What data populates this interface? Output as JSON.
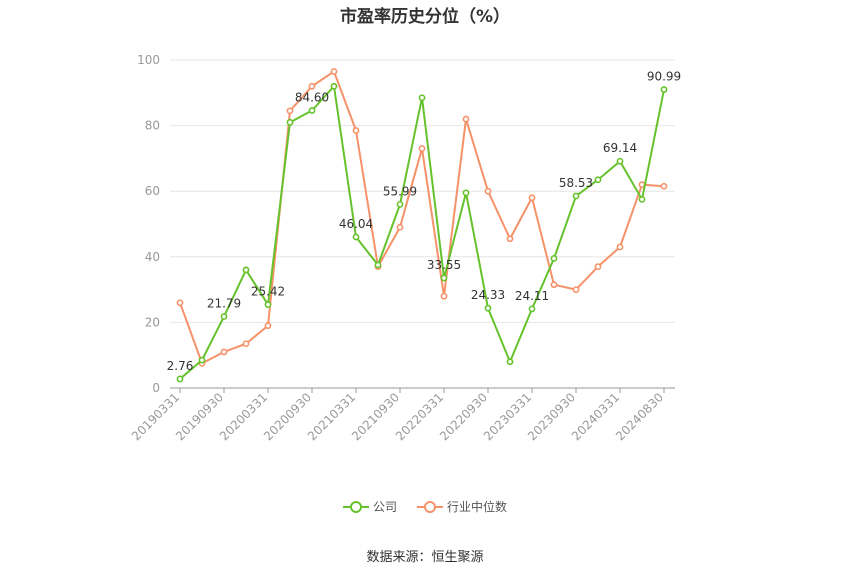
{
  "title": "市盈率历史分位（%）",
  "source": "数据来源：恒生聚源",
  "colors": {
    "company": "#66c22c",
    "industry": "#f5926a",
    "grid": "#e6e6e6",
    "axis": "#999999"
  },
  "chart_data": {
    "type": "line",
    "title": "市盈率历史分位（%）",
    "xlabel": "",
    "ylabel": "",
    "ylim": [
      0,
      100
    ],
    "yticks": [
      0,
      20,
      40,
      60,
      80,
      100
    ],
    "grid": true,
    "legend_position": "bottom",
    "x": [
      "20190331",
      "20190630",
      "20190930",
      "20191231",
      "20200331",
      "20200630",
      "20200930",
      "20201231",
      "20210331",
      "20210630",
      "20210930",
      "20211231",
      "20220331",
      "20220630",
      "20220930",
      "20221231",
      "20230331",
      "20230630",
      "20230930",
      "20231231",
      "20240331",
      "20240630",
      "20240830"
    ],
    "xticks": [
      "20190331",
      "20190930",
      "20200331",
      "20200930",
      "20210331",
      "20210930",
      "20220331",
      "20220930",
      "20230331",
      "20230930",
      "20240331",
      "20240830"
    ],
    "series": [
      {
        "name": "公司",
        "color": "#66c22c",
        "values": [
          2.76,
          8.5,
          21.79,
          36.0,
          25.42,
          81.0,
          84.6,
          92.0,
          46.04,
          37.5,
          55.99,
          88.5,
          33.55,
          59.5,
          24.33,
          8.0,
          24.11,
          39.5,
          58.53,
          63.5,
          69.14,
          57.5,
          90.99
        ],
        "labeled_points": [
          {
            "index": 0,
            "label": "2.76"
          },
          {
            "index": 2,
            "label": "21.79"
          },
          {
            "index": 4,
            "label": "25.42"
          },
          {
            "index": 6,
            "label": "84.60"
          },
          {
            "index": 8,
            "label": "46.04"
          },
          {
            "index": 10,
            "label": "55.99"
          },
          {
            "index": 12,
            "label": "33.55"
          },
          {
            "index": 14,
            "label": "24.33"
          },
          {
            "index": 16,
            "label": "24.11"
          },
          {
            "index": 18,
            "label": "58.53"
          },
          {
            "index": 20,
            "label": "69.14"
          },
          {
            "index": 22,
            "label": "90.99"
          }
        ]
      },
      {
        "name": "行业中位数",
        "color": "#f5926a",
        "values": [
          26.0,
          7.5,
          11.0,
          13.5,
          19.0,
          84.5,
          92.0,
          96.5,
          78.5,
          37.0,
          49.0,
          73.0,
          28.0,
          82.0,
          60.0,
          45.5,
          58.0,
          31.5,
          30.0,
          37.0,
          43.0,
          62.0,
          61.5
        ]
      }
    ]
  }
}
